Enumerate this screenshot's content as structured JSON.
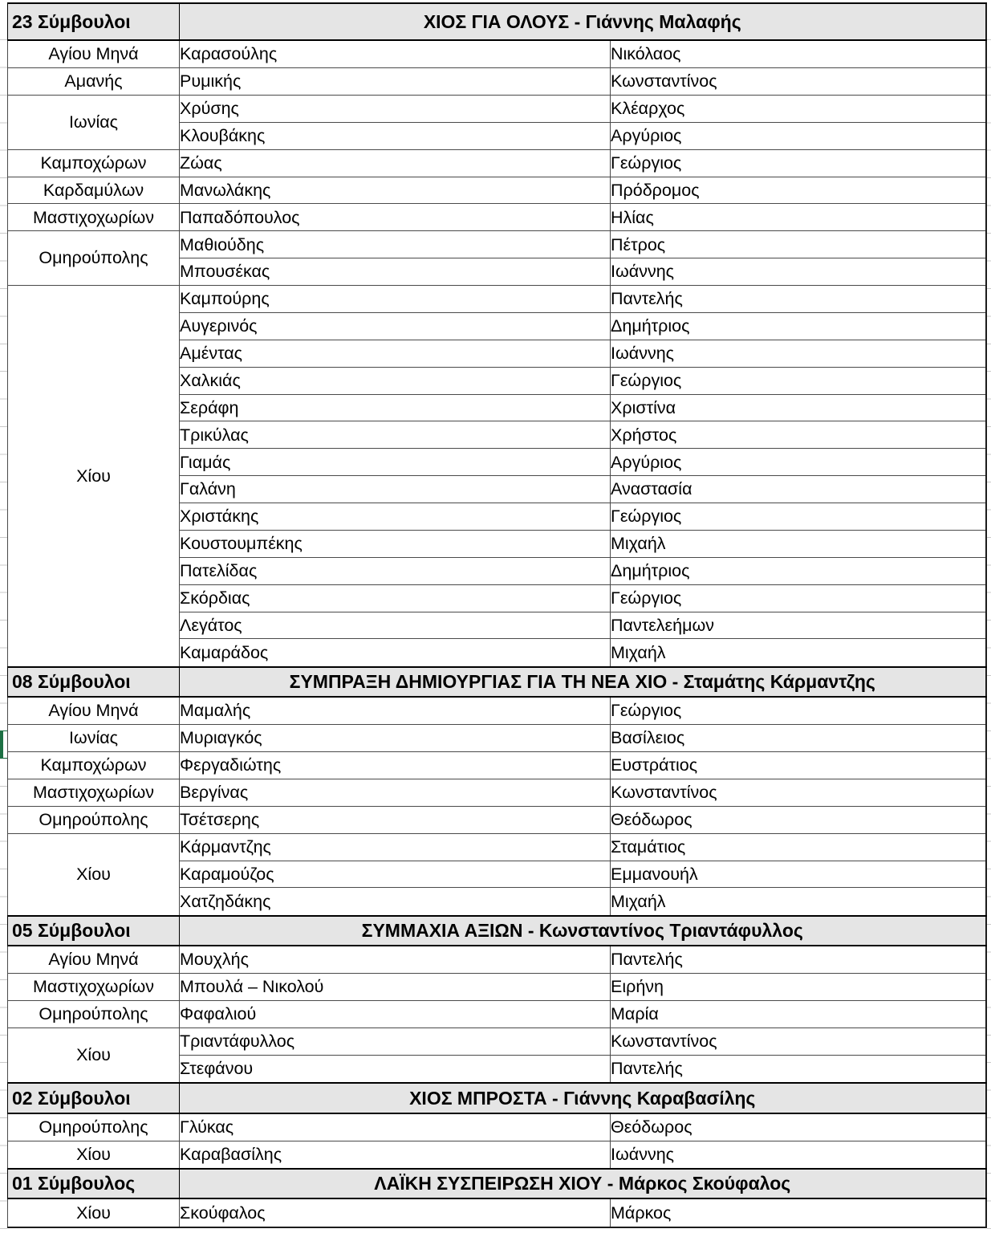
{
  "ui": {
    "header_row_bg": "#e5e5e5",
    "grid_line_color": "#4a4a4a",
    "section_border_color": "#000000",
    "active_cell_border_color": "#1d7044"
  },
  "table": {
    "sections": [
      {
        "count_label": "23 Σύμβουλοι",
        "title": "ΧΙΟΣ ΓΙΑ ΟΛΟΥΣ - Γιάννης Μαλαφής",
        "groups": [
          {
            "district": "Αγίου Μηνά",
            "members": [
              {
                "surname": "Καρασούλης",
                "firstname": "Νικόλαος"
              }
            ]
          },
          {
            "district": "Αμανής",
            "members": [
              {
                "surname": "Ρυμικής",
                "firstname": "Κωνσταντίνος"
              }
            ]
          },
          {
            "district": "Ιωνίας",
            "members": [
              {
                "surname": "Χρύσης",
                "firstname": "Κλέαρχος"
              },
              {
                "surname": "Κλουβάκης",
                "firstname": "Αργύριος"
              }
            ]
          },
          {
            "district": "Καμποχώρων",
            "members": [
              {
                "surname": "Ζώας",
                "firstname": "Γεώργιος"
              }
            ]
          },
          {
            "district": "Καρδαμύλων",
            "members": [
              {
                "surname": "Μανωλάκης",
                "firstname": "Πρόδρομος"
              }
            ]
          },
          {
            "district": "Μαστιχοχωρίων",
            "members": [
              {
                "surname": "Παπαδόπουλος",
                "firstname": "Ηλίας"
              }
            ]
          },
          {
            "district": "Ομηρούπολης",
            "members": [
              {
                "surname": "Μαθιούδης",
                "firstname": "Πέτρος"
              },
              {
                "surname": "Μπουσέκας",
                "firstname": "Ιωάννης"
              }
            ]
          },
          {
            "district": "Χίου",
            "members": [
              {
                "surname": "Καμπούρης",
                "firstname": "Παντελής"
              },
              {
                "surname": "Αυγερινός",
                "firstname": "Δημήτριος"
              },
              {
                "surname": "Αμέντας",
                "firstname": "Ιωάννης"
              },
              {
                "surname": "Χαλκιάς",
                "firstname": "Γεώργιος"
              },
              {
                "surname": "Σεράφη",
                "firstname": "Χριστίνα"
              },
              {
                "surname": "Τρικύλας",
                "firstname": "Χρήστος"
              },
              {
                "surname": "Γιαμάς",
                "firstname": "Αργύριος"
              },
              {
                "surname": "Γαλάνη",
                "firstname": "Αναστασία"
              },
              {
                "surname": "Χριστάκης",
                "firstname": "Γεώργιος"
              },
              {
                "surname": "Κουστουμπέκης",
                "firstname": "Μιχαήλ"
              },
              {
                "surname": "Πατελίδας",
                "firstname": "Δημήτριος"
              },
              {
                "surname": "Σκόρδιας",
                "firstname": "Γεώργιος"
              },
              {
                "surname": "Λεγάτος",
                "firstname": "Παντελεήμων"
              },
              {
                "surname": "Καμαράδος",
                "firstname": "Μιχαήλ"
              }
            ]
          }
        ]
      },
      {
        "count_label": "08 Σύμβουλοι",
        "title": "ΣΥΜΠΡΑΞΗ ΔΗΜΙΟΥΡΓΙΑΣ ΓΙΑ ΤΗ ΝΕΑ ΧΙΟ - Σταμάτης Κάρμαντζης",
        "groups": [
          {
            "district": "Αγίου Μηνά",
            "members": [
              {
                "surname": "Μαμαλής",
                "firstname": "Γεώργιος"
              }
            ]
          },
          {
            "district": "Ιωνίας",
            "members": [
              {
                "surname": "Μυριαγκός",
                "firstname": "Βασίλειος"
              }
            ]
          },
          {
            "district": "Καμποχώρων",
            "members": [
              {
                "surname": "Φεργαδιώτης",
                "firstname": "Ευστράτιος"
              }
            ]
          },
          {
            "district": "Μαστιχοχωρίων",
            "members": [
              {
                "surname": "Βεργίνας",
                "firstname": "Κωνσταντίνος"
              }
            ]
          },
          {
            "district": "Ομηρούπολης",
            "members": [
              {
                "surname": "Τσέτσερης",
                "firstname": "Θεόδωρος"
              }
            ]
          },
          {
            "district": "Χίου",
            "members": [
              {
                "surname": "Κάρμαντζης",
                "firstname": "Σταμάτιος"
              },
              {
                "surname": "Καραμούζος",
                "firstname": "Εμμανουήλ"
              },
              {
                "surname": "Χατζηδάκης",
                "firstname": "Μιχαήλ"
              }
            ]
          }
        ]
      },
      {
        "count_label": "05 Σύμβουλοι",
        "title": "ΣΥΜΜΑΧΙΑ ΑΞΙΩΝ - Κωνσταντίνος Τριαντάφυλλος",
        "groups": [
          {
            "district": "Αγίου Μηνά",
            "members": [
              {
                "surname": "Μουχλής",
                "firstname": "Παντελής"
              }
            ]
          },
          {
            "district": "Μαστιχοχωρίων",
            "members": [
              {
                "surname": "Μπουλά – Νικολού",
                "firstname": "Ειρήνη"
              }
            ]
          },
          {
            "district": "Ομηρούπολης",
            "members": [
              {
                "surname": "Φαφαλιού",
                "firstname": "Μαρία"
              }
            ]
          },
          {
            "district": "Χίου",
            "members": [
              {
                "surname": "Τριαντάφυλλος",
                "firstname": "Κωνσταντίνος"
              },
              {
                "surname": "Στεφάνου",
                "firstname": "Παντελής"
              }
            ]
          }
        ]
      },
      {
        "count_label": "02 Σύμβουλοι",
        "title": "ΧΙΟΣ ΜΠΡΟΣΤΑ - Γιάννης Καραβασίλης",
        "groups": [
          {
            "district": "Ομηρούπολης",
            "members": [
              {
                "surname": "Γλύκας",
                "firstname": "Θεόδωρος"
              }
            ]
          },
          {
            "district": "Χίου",
            "members": [
              {
                "surname": "Καραβασίλης",
                "firstname": "Ιωάννης"
              }
            ]
          }
        ]
      },
      {
        "count_label": "01 Σύμβουλος",
        "title": "ΛΑΪΚΗ ΣΥΣΠΕΙΡΩΣΗ ΧΙΟΥ - Μάρκος Σκούφαλος",
        "groups": [
          {
            "district": "Χίου",
            "members": [
              {
                "surname": "Σκούφαλος",
                "firstname": "Μάρκος"
              }
            ]
          }
        ]
      }
    ]
  }
}
